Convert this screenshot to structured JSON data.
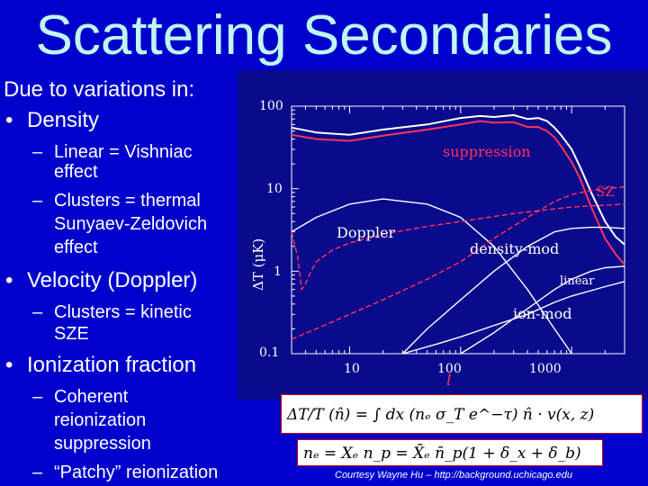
{
  "slide": {
    "title": "Scattering Secondaries"
  },
  "bullets": {
    "intro": "Due to variations in:",
    "density": "Density",
    "vishniac_1": "Linear = Vishniac",
    "vishniac_2": "effect",
    "sz_1": "Clusters = thermal",
    "sz_2": "Sunyaev-Zeldovich",
    "sz_3": "effect",
    "velocity": "Velocity (Doppler)",
    "ksz_1": "Clusters = kinetic",
    "ksz_2": "SZE",
    "ionization": "Ionization fraction",
    "reion_1": "Coherent",
    "reion_2": "reionization",
    "reion_3": "suppression",
    "patchy": "“Patchy” reionization",
    "bullet_char": "•",
    "dash_char": "–"
  },
  "chart_data": {
    "type": "line",
    "xscale": "log",
    "yscale": "log",
    "xlim": [
      3,
      3000
    ],
    "ylim": [
      0.1,
      100
    ],
    "xlabel": "l",
    "ylabel": "ΔT (μK)",
    "xticks": [
      "10",
      "100",
      "1000"
    ],
    "yticks": [
      "100",
      "10",
      "1",
      "0.1"
    ],
    "series": [
      {
        "name": "",
        "color": "#ffffff",
        "x": [
          3,
          5,
          10,
          20,
          50,
          100,
          150,
          200,
          300,
          400,
          500,
          600,
          700,
          800,
          1000,
          1200,
          1500,
          2000,
          2500,
          3000
        ],
        "y": [
          55,
          48,
          45,
          52,
          60,
          72,
          76,
          74,
          78,
          70,
          72,
          66,
          55,
          45,
          30,
          18,
          9,
          4,
          2.6,
          2.1
        ]
      },
      {
        "name": "suppression",
        "color": "#ff3355",
        "x": [
          3,
          5,
          10,
          20,
          50,
          100,
          150,
          200,
          300,
          400,
          500,
          600,
          700,
          800,
          1000,
          1200,
          1500,
          2000,
          2500,
          3000
        ],
        "y": [
          45,
          40,
          38,
          44,
          52,
          60,
          66,
          63,
          64,
          56,
          56,
          50,
          42,
          33,
          21,
          13,
          6,
          2.5,
          1.6,
          1.2
        ]
      },
      {
        "name": "Doppler",
        "color": "#ffffff",
        "x": [
          3,
          5,
          10,
          20,
          50,
          100,
          200,
          400,
          700,
          1000
        ],
        "y": [
          3,
          4.5,
          6.5,
          7.5,
          6.5,
          4.5,
          2,
          0.6,
          0.2,
          0.1
        ]
      },
      {
        "name": "density-mod",
        "color": "#ffffff",
        "x": [
          30,
          50,
          100,
          200,
          400,
          700,
          1000,
          1500,
          2000,
          3000
        ],
        "y": [
          0.1,
          0.2,
          0.45,
          1,
          2,
          3,
          3.3,
          3.4,
          3.4,
          3.3
        ]
      },
      {
        "name": "linear",
        "color": "#ffffff",
        "x": [
          100,
          200,
          400,
          700,
          1000,
          1500,
          2000,
          3000
        ],
        "y": [
          0.1,
          0.18,
          0.35,
          0.6,
          0.8,
          1.0,
          1.1,
          1.15
        ]
      },
      {
        "name": "ion-mod",
        "color": "#ffffff",
        "x": [
          30,
          60,
          100,
          200,
          400,
          700,
          1000,
          2000,
          3000
        ],
        "y": [
          0.1,
          0.13,
          0.16,
          0.22,
          0.3,
          0.42,
          0.5,
          0.65,
          0.75
        ]
      },
      {
        "name": "SZ",
        "color": "#ff3355",
        "x": [
          3,
          5,
          10,
          20,
          50,
          100,
          200,
          400,
          700,
          1000,
          1500,
          2000,
          3000
        ],
        "y": [
          0.15,
          0.2,
          0.3,
          0.45,
          0.8,
          1.3,
          2.5,
          4.5,
          7,
          8.5,
          9.5,
          10,
          10.5
        ]
      },
      {
        "name": "",
        "color": "#ff3355",
        "x": [
          3,
          3.4,
          3.7,
          4,
          4.5,
          5,
          7,
          10,
          20,
          50,
          100,
          300,
          1000,
          3000
        ],
        "y": [
          3,
          1.5,
          0.6,
          0.7,
          1,
          1.3,
          1.8,
          2.2,
          2.8,
          3.5,
          4,
          5,
          6,
          6.5
        ]
      }
    ],
    "labels": {
      "suppression": "suppression",
      "sz": "SZ",
      "doppler": "Doppler",
      "density_mod": "density-mod",
      "linear": "linear",
      "ion_mod": "ion-mod"
    }
  },
  "formulas": {
    "doppler_formula": "ΔT/T (n̂) = ∫ dx (nₑ σ_T e^−τ) n̂ · v(x, z)",
    "density_formula": "nₑ = Xₑ n_p = X̄ₑ n̄_p(1 + δ_x + δ_b)"
  },
  "footer": {
    "courtesy": "Courtesy Wayne Hu – http://background.uchicago.edu"
  }
}
